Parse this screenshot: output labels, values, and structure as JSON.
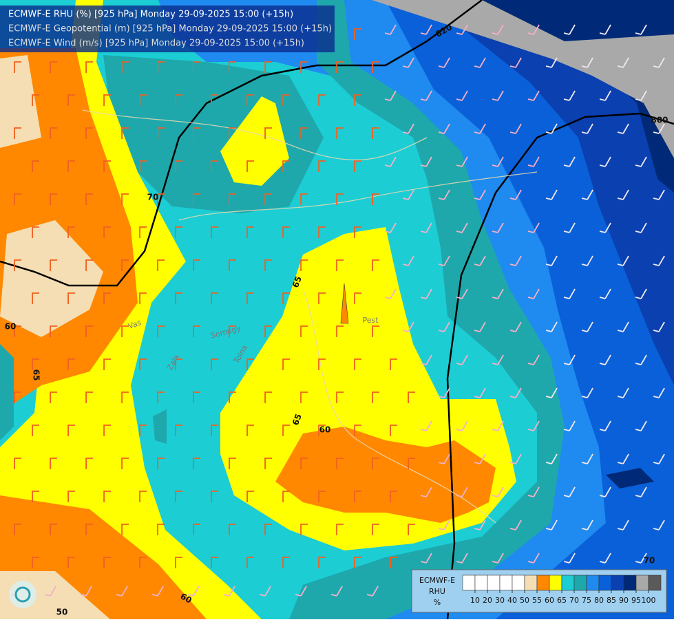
{
  "header": {
    "lines": [
      "ECMWF-E RHU (%) [925 hPa] Monday 29-09-2025 15:00 (+15h)",
      "ECMWF-E Geopotential (m) [925 hPa] Monday 29-09-2025 15:00 (+15h)",
      "ECMWF-E Wind (m/s) [925 hPa] Monday 29-09-2025 15:00 (+15h)"
    ]
  },
  "contour_labels": [
    "820",
    "800",
    "70",
    "65",
    "65",
    "60",
    "60",
    "65",
    "60",
    "50",
    "70"
  ],
  "place_labels": [
    "Pest",
    "Vas",
    "Zala",
    "Tolna",
    "Somogy"
  ],
  "legend": {
    "title_lines": [
      "ECMWF-E",
      "RHU",
      "%"
    ],
    "colors": [
      "#ffffff",
      "#ffffff",
      "#ffffff",
      "#ffffff",
      "#ffffff",
      "#f5deb3",
      "#ff8800",
      "#ffff00",
      "#1ccdd4",
      "#1ea8ac",
      "#1f8af0",
      "#0a60d8",
      "#0a40b0",
      "#002a78",
      "#a9a9a9",
      "#5a5a5a"
    ],
    "ticks": [
      10,
      20,
      30,
      40,
      50,
      55,
      60,
      65,
      70,
      75,
      80,
      85,
      90,
      95,
      100
    ]
  }
}
